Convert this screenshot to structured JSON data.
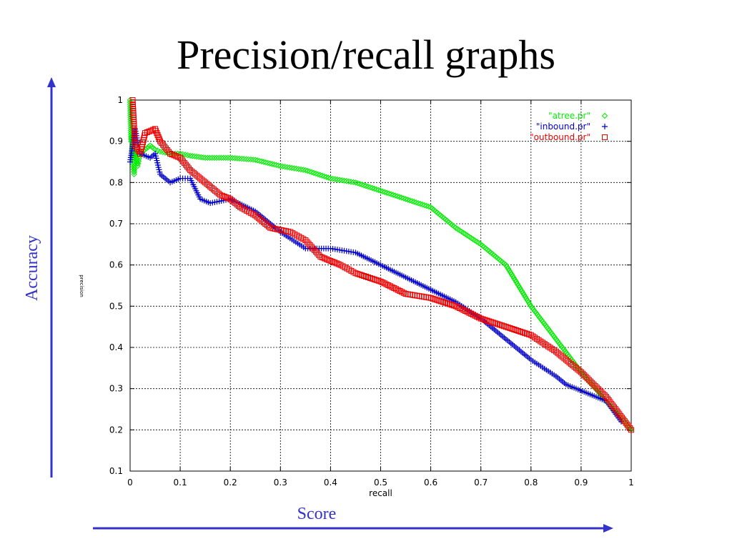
{
  "slide": {
    "title": "Precision/recall graphs",
    "y_axis_annotation": "Accuracy",
    "x_axis_annotation": "Score",
    "arrow_color": "#3333cc"
  },
  "chart_data": {
    "type": "scatter",
    "title": "",
    "xlabel": "recall",
    "ylabel": "precision",
    "xlim": [
      0,
      1
    ],
    "ylim": [
      0.1,
      1
    ],
    "xticks": [
      0,
      0.1,
      0.2,
      0.3,
      0.4,
      0.5,
      0.6,
      0.7,
      0.8,
      0.9,
      1
    ],
    "yticks": [
      0.1,
      0.2,
      0.3,
      0.4,
      0.5,
      0.6,
      0.7,
      0.8,
      0.9,
      1
    ],
    "grid": true,
    "legend_position": "top-right",
    "series": [
      {
        "name": "\"atree.pr\"",
        "color": "#00ee00",
        "marker": "diamond",
        "points": [
          [
            0.0,
            1.0
          ],
          [
            0.002,
            0.9
          ],
          [
            0.004,
            0.93
          ],
          [
            0.006,
            0.85
          ],
          [
            0.008,
            0.82
          ],
          [
            0.01,
            0.88
          ],
          [
            0.015,
            0.84
          ],
          [
            0.02,
            0.87
          ],
          [
            0.03,
            0.88
          ],
          [
            0.04,
            0.89
          ],
          [
            0.05,
            0.88
          ],
          [
            0.06,
            0.875
          ],
          [
            0.08,
            0.87
          ],
          [
            0.1,
            0.87
          ],
          [
            0.12,
            0.865
          ],
          [
            0.15,
            0.86
          ],
          [
            0.2,
            0.86
          ],
          [
            0.25,
            0.855
          ],
          [
            0.3,
            0.84
          ],
          [
            0.35,
            0.83
          ],
          [
            0.4,
            0.81
          ],
          [
            0.45,
            0.8
          ],
          [
            0.5,
            0.78
          ],
          [
            0.55,
            0.76
          ],
          [
            0.6,
            0.74
          ],
          [
            0.65,
            0.69
          ],
          [
            0.7,
            0.65
          ],
          [
            0.75,
            0.6
          ],
          [
            0.8,
            0.5
          ],
          [
            0.85,
            0.42
          ],
          [
            0.9,
            0.34
          ],
          [
            0.95,
            0.27
          ],
          [
            1.0,
            0.2
          ]
        ]
      },
      {
        "name": "\"inbound.pr\"",
        "color": "#0000cc",
        "marker": "plus",
        "points": [
          [
            0.0,
            0.85
          ],
          [
            0.01,
            0.93
          ],
          [
            0.02,
            0.87
          ],
          [
            0.04,
            0.86
          ],
          [
            0.05,
            0.87
          ],
          [
            0.06,
            0.82
          ],
          [
            0.08,
            0.8
          ],
          [
            0.1,
            0.81
          ],
          [
            0.12,
            0.81
          ],
          [
            0.14,
            0.76
          ],
          [
            0.16,
            0.75
          ],
          [
            0.2,
            0.76
          ],
          [
            0.25,
            0.73
          ],
          [
            0.3,
            0.68
          ],
          [
            0.35,
            0.64
          ],
          [
            0.4,
            0.64
          ],
          [
            0.45,
            0.63
          ],
          [
            0.5,
            0.6
          ],
          [
            0.55,
            0.57
          ],
          [
            0.6,
            0.54
          ],
          [
            0.65,
            0.51
          ],
          [
            0.7,
            0.47
          ],
          [
            0.75,
            0.42
          ],
          [
            0.8,
            0.37
          ],
          [
            0.85,
            0.33
          ],
          [
            0.87,
            0.31
          ],
          [
            0.95,
            0.27
          ],
          [
            0.98,
            0.22
          ]
        ]
      },
      {
        "name": "\"outbound.pr\"",
        "color": "#ee0000",
        "marker": "square",
        "points": [
          [
            0.005,
            1.0
          ],
          [
            0.01,
            0.89
          ],
          [
            0.02,
            0.87
          ],
          [
            0.03,
            0.92
          ],
          [
            0.05,
            0.93
          ],
          [
            0.06,
            0.9
          ],
          [
            0.08,
            0.87
          ],
          [
            0.1,
            0.86
          ],
          [
            0.12,
            0.83
          ],
          [
            0.15,
            0.8
          ],
          [
            0.18,
            0.77
          ],
          [
            0.2,
            0.76
          ],
          [
            0.22,
            0.74
          ],
          [
            0.25,
            0.72
          ],
          [
            0.28,
            0.69
          ],
          [
            0.32,
            0.68
          ],
          [
            0.35,
            0.66
          ],
          [
            0.38,
            0.62
          ],
          [
            0.42,
            0.6
          ],
          [
            0.45,
            0.58
          ],
          [
            0.5,
            0.56
          ],
          [
            0.55,
            0.53
          ],
          [
            0.6,
            0.52
          ],
          [
            0.65,
            0.5
          ],
          [
            0.7,
            0.47
          ],
          [
            0.75,
            0.45
          ],
          [
            0.8,
            0.43
          ],
          [
            0.85,
            0.39
          ],
          [
            0.9,
            0.34
          ],
          [
            0.95,
            0.28
          ],
          [
            1.0,
            0.2
          ]
        ]
      }
    ]
  }
}
